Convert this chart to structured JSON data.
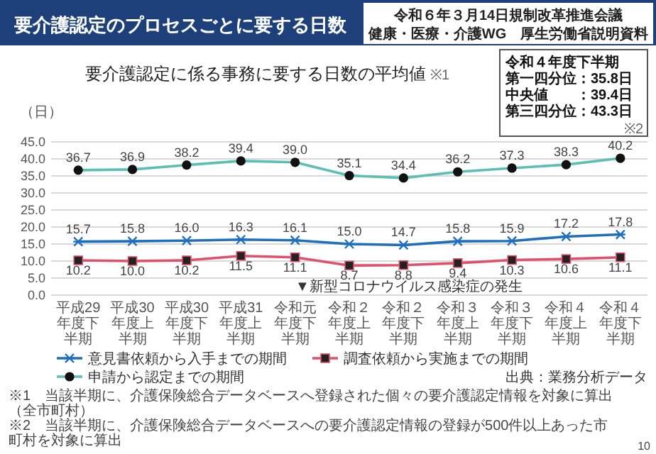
{
  "chart_data": {
    "type": "line",
    "title": "要介護認定のプロセスごとに要する日数",
    "subtitle": "要介護認定に係る事務に要する日数の平均値",
    "ylabel": "（日）",
    "categories": [
      "平成29年度下半期",
      "平成30年度上半期",
      "平成30年度下半期",
      "平成31年度上半期",
      "令和元年度下半期",
      "令和２年度上半期",
      "令和２年度下半期",
      "令和３年度上半期",
      "令和３年度下半期",
      "令和４年度上半期",
      "令和４年度下半期"
    ],
    "series": [
      {
        "name": "意見書依頼から入手までの期間",
        "color": "#1f6fc0",
        "marker": "cross",
        "values": [
          15.7,
          15.8,
          16.0,
          16.3,
          16.1,
          15.0,
          14.7,
          15.8,
          15.9,
          17.2,
          17.8
        ],
        "value_labels": [
          "15.7",
          "15.8",
          "16.0",
          "16.3",
          "16.1",
          "15.0",
          "14.7",
          "15.8",
          "15.9",
          "17.2",
          "17.8"
        ]
      },
      {
        "name": "調査依頼から実施までの期間",
        "color": "#e0506a",
        "marker": "square",
        "values": [
          10.2,
          10.0,
          10.2,
          11.5,
          11.1,
          8.7,
          8.8,
          9.4,
          10.3,
          10.6,
          11.1
        ],
        "value_labels": [
          "10.2",
          "10.0",
          "10.2",
          "11.5",
          "11.1",
          "8.7",
          "8.8",
          "9.4",
          "10.3",
          "10.6",
          "11.1"
        ]
      },
      {
        "name": "申請から認定までの期間",
        "color": "#5bbfb5",
        "marker": "circle",
        "values": [
          36.7,
          36.9,
          38.2,
          39.4,
          39.0,
          35.1,
          34.4,
          36.2,
          37.3,
          38.3,
          40.2
        ],
        "value_labels": [
          "36.7",
          "36.9",
          "38.2",
          "39.4",
          "39.0",
          "35.1",
          "34.4",
          "36.2",
          "37.3",
          "38.3",
          "40.2"
        ]
      }
    ],
    "ylim": [
      0,
      45
    ],
    "yticks": [
      {
        "value": 0,
        "label": "0.0"
      },
      {
        "value": 5,
        "label": "5.0"
      },
      {
        "value": 10,
        "label": "10.0"
      },
      {
        "value": 15,
        "label": "15.0"
      },
      {
        "value": 20,
        "label": "20.0"
      },
      {
        "value": 25,
        "label": "25.0"
      },
      {
        "value": 30,
        "label": "30.0"
      },
      {
        "value": 35,
        "label": "35.0"
      },
      {
        "value": 40,
        "label": "40.0"
      },
      {
        "value": 45,
        "label": "45.0"
      }
    ],
    "grid": "y",
    "legend": "bottom",
    "annotations": [
      "※1",
      "令和６年３月14日規制改革推進会議",
      "健康・医療・介護WG　厚生労働省説明資料",
      "令和４年度下半期",
      "第一四分位：35.8日",
      "中央値　　：39.4日",
      "第三四分位：43.3日",
      "※2",
      "▼新型コロナウイルス感染症の発生",
      "※1　当該半期に、介護保険総合データベースへ登録された個々の要介護認定情報を対象に算出（全市町村）",
      "※2　当該半期に、介護保険総合データベースへの要介護認定情報の登録が500件以上あった市町村を対象に算出",
      "出典：業務分析データ",
      "10"
    ]
  }
}
